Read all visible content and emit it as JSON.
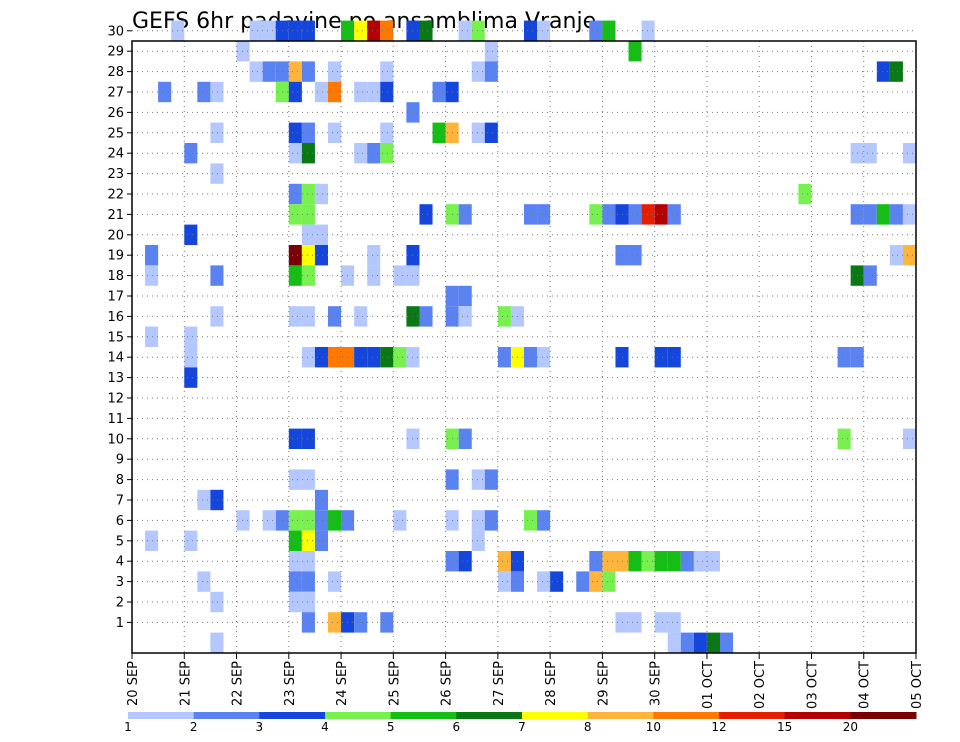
{
  "title": "GEFS 6hr padavine po ansamblima Vranje",
  "chart_data": {
    "type": "heatmap",
    "title": "GEFS 6hr padavine po ansamblima Vranje",
    "xlabel": "",
    "ylabel": "",
    "x_tick_labels": [
      "20 SEP",
      "21 SEP",
      "22 SEP",
      "23 SEP",
      "24 SEP",
      "25 SEP",
      "26 SEP",
      "27 SEP",
      "28 SEP",
      "29 SEP",
      "30 SEP",
      "01 OCT",
      "02 OCT",
      "03 OCT",
      "04 OCT",
      "05 OCT"
    ],
    "y_tick_labels": [
      "1",
      "2",
      "3",
      "4",
      "5",
      "6",
      "7",
      "8",
      "9",
      "10",
      "11",
      "12",
      "13",
      "14",
      "15",
      "16",
      "17",
      "18",
      "19",
      "20",
      "21",
      "22",
      "23",
      "24",
      "25",
      "26",
      "27",
      "28",
      "29",
      "30"
    ],
    "xlim_steps": [
      0,
      60
    ],
    "ylim_members": [
      0,
      30
    ],
    "grid": true,
    "colorbar": {
      "labels": [
        "1",
        "2",
        "3",
        "4",
        "5",
        "6",
        "7",
        "8",
        "10",
        "12",
        "15",
        "20"
      ],
      "colors": [
        "#b4c8ff",
        "#5a82f0",
        "#1446dc",
        "#78f050",
        "#14be14",
        "#0a7814",
        "#ffff00",
        "#ffb43c",
        "#ff7800",
        "#e61e00",
        "#b40000",
        "#780000"
      ]
    },
    "cells": [
      [
        3,
        30,
        1
      ],
      [
        9,
        30,
        1
      ],
      [
        10,
        30,
        1
      ],
      [
        11,
        30,
        3
      ],
      [
        12,
        30,
        3
      ],
      [
        13,
        30,
        3
      ],
      [
        16,
        30,
        5
      ],
      [
        17,
        30,
        7
      ],
      [
        18,
        30,
        15
      ],
      [
        19,
        30,
        10
      ],
      [
        21,
        30,
        3
      ],
      [
        22,
        30,
        6
      ],
      [
        25,
        30,
        1
      ],
      [
        26,
        30,
        4
      ],
      [
        30,
        30,
        3
      ],
      [
        31,
        30,
        1
      ],
      [
        35,
        30,
        2
      ],
      [
        36,
        30,
        5
      ],
      [
        39,
        30,
        1
      ],
      [
        8,
        29,
        1
      ],
      [
        27,
        29,
        1
      ],
      [
        38,
        29,
        5
      ],
      [
        9,
        28,
        1
      ],
      [
        10,
        28,
        2
      ],
      [
        11,
        28,
        2
      ],
      [
        12,
        28,
        8
      ],
      [
        13,
        28,
        2
      ],
      [
        15,
        28,
        1
      ],
      [
        19,
        28,
        1
      ],
      [
        26,
        28,
        1
      ],
      [
        27,
        28,
        2
      ],
      [
        57,
        28,
        3
      ],
      [
        58,
        28,
        6
      ],
      [
        60,
        28,
        3
      ],
      [
        2,
        27,
        2
      ],
      [
        5,
        27,
        2
      ],
      [
        6,
        27,
        1
      ],
      [
        11,
        27,
        4
      ],
      [
        12,
        27,
        3
      ],
      [
        14,
        27,
        1
      ],
      [
        15,
        27,
        10
      ],
      [
        17,
        27,
        1
      ],
      [
        18,
        27,
        1
      ],
      [
        19,
        27,
        3
      ],
      [
        23,
        27,
        2
      ],
      [
        24,
        27,
        3
      ],
      [
        21,
        26,
        2
      ],
      [
        6,
        25,
        1
      ],
      [
        12,
        25,
        3
      ],
      [
        13,
        25,
        2
      ],
      [
        15,
        25,
        1
      ],
      [
        19,
        25,
        1
      ],
      [
        23,
        25,
        5
      ],
      [
        24,
        25,
        8
      ],
      [
        26,
        25,
        1
      ],
      [
        27,
        25,
        3
      ],
      [
        4,
        24,
        2
      ],
      [
        12,
        24,
        1
      ],
      [
        13,
        24,
        6
      ],
      [
        17,
        24,
        1
      ],
      [
        18,
        24,
        2
      ],
      [
        19,
        24,
        4
      ],
      [
        55,
        24,
        1
      ],
      [
        56,
        24,
        1
      ],
      [
        59,
        24,
        1
      ],
      [
        6,
        23,
        1
      ],
      [
        12,
        22,
        2
      ],
      [
        13,
        22,
        4
      ],
      [
        14,
        22,
        1
      ],
      [
        51,
        22,
        4
      ],
      [
        12,
        21,
        4
      ],
      [
        13,
        21,
        4
      ],
      [
        22,
        21,
        3
      ],
      [
        24,
        21,
        4
      ],
      [
        25,
        21,
        2
      ],
      [
        30,
        21,
        2
      ],
      [
        31,
        21,
        2
      ],
      [
        35,
        21,
        4
      ],
      [
        36,
        21,
        2
      ],
      [
        37,
        21,
        3
      ],
      [
        38,
        21,
        2
      ],
      [
        39,
        21,
        12
      ],
      [
        40,
        21,
        15
      ],
      [
        41,
        21,
        2
      ],
      [
        55,
        21,
        2
      ],
      [
        56,
        21,
        2
      ],
      [
        57,
        21,
        5
      ],
      [
        58,
        21,
        2
      ],
      [
        59,
        21,
        1
      ],
      [
        4,
        20,
        3
      ],
      [
        13,
        20,
        1
      ],
      [
        14,
        20,
        1
      ],
      [
        1,
        19,
        2
      ],
      [
        12,
        19,
        20
      ],
      [
        13,
        19,
        7
      ],
      [
        14,
        19,
        3
      ],
      [
        18,
        19,
        1
      ],
      [
        21,
        19,
        3
      ],
      [
        37,
        19,
        2
      ],
      [
        38,
        19,
        2
      ],
      [
        58,
        19,
        1
      ],
      [
        59,
        19,
        8
      ],
      [
        60,
        19,
        7
      ],
      [
        1,
        18,
        1
      ],
      [
        6,
        18,
        2
      ],
      [
        12,
        18,
        5
      ],
      [
        13,
        18,
        4
      ],
      [
        16,
        18,
        1
      ],
      [
        18,
        18,
        1
      ],
      [
        20,
        18,
        1
      ],
      [
        21,
        18,
        1
      ],
      [
        55,
        18,
        6
      ],
      [
        56,
        18,
        2
      ],
      [
        24,
        17,
        2
      ],
      [
        25,
        17,
        2
      ],
      [
        6,
        16,
        1
      ],
      [
        12,
        16,
        1
      ],
      [
        13,
        16,
        1
      ],
      [
        15,
        16,
        2
      ],
      [
        17,
        16,
        1
      ],
      [
        21,
        16,
        6
      ],
      [
        22,
        16,
        2
      ],
      [
        24,
        16,
        2
      ],
      [
        25,
        16,
        1
      ],
      [
        28,
        16,
        4
      ],
      [
        29,
        16,
        1
      ],
      [
        1,
        15,
        1
      ],
      [
        4,
        15,
        1
      ],
      [
        4,
        14,
        1
      ],
      [
        13,
        14,
        1
      ],
      [
        14,
        14,
        3
      ],
      [
        15,
        14,
        10
      ],
      [
        16,
        14,
        10
      ],
      [
        17,
        14,
        3
      ],
      [
        18,
        14,
        3
      ],
      [
        19,
        14,
        6
      ],
      [
        20,
        14,
        4
      ],
      [
        21,
        14,
        1
      ],
      [
        28,
        14,
        2
      ],
      [
        29,
        14,
        7
      ],
      [
        30,
        14,
        2
      ],
      [
        31,
        14,
        1
      ],
      [
        37,
        14,
        3
      ],
      [
        40,
        14,
        3
      ],
      [
        41,
        14,
        3
      ],
      [
        54,
        14,
        2
      ],
      [
        55,
        14,
        2
      ],
      [
        4,
        13,
        3
      ],
      [
        12,
        10,
        3
      ],
      [
        13,
        10,
        3
      ],
      [
        21,
        10,
        1
      ],
      [
        24,
        10,
        4
      ],
      [
        25,
        10,
        2
      ],
      [
        54,
        10,
        4
      ],
      [
        59,
        10,
        1
      ],
      [
        12,
        8,
        1
      ],
      [
        13,
        8,
        1
      ],
      [
        24,
        8,
        2
      ],
      [
        26,
        8,
        1
      ],
      [
        27,
        8,
        2
      ],
      [
        5,
        7,
        1
      ],
      [
        6,
        7,
        3
      ],
      [
        14,
        7,
        2
      ],
      [
        8,
        6,
        1
      ],
      [
        11,
        6,
        2
      ],
      [
        12,
        6,
        4
      ],
      [
        13,
        6,
        4
      ],
      [
        14,
        6,
        2
      ],
      [
        15,
        6,
        5
      ],
      [
        16,
        6,
        2
      ],
      [
        20,
        6,
        1
      ],
      [
        24,
        6,
        1
      ],
      [
        26,
        6,
        1
      ],
      [
        27,
        6,
        2
      ],
      [
        30,
        6,
        4
      ],
      [
        31,
        6,
        2
      ],
      [
        10,
        6,
        1
      ],
      [
        1,
        5,
        1
      ],
      [
        4,
        5,
        1
      ],
      [
        12,
        5,
        5
      ],
      [
        13,
        5,
        7
      ],
      [
        14,
        5,
        2
      ],
      [
        26,
        5,
        1
      ],
      [
        12,
        4,
        1
      ],
      [
        13,
        4,
        1
      ],
      [
        24,
        4,
        2
      ],
      [
        25,
        4,
        3
      ],
      [
        28,
        4,
        8
      ],
      [
        29,
        4,
        3
      ],
      [
        35,
        4,
        2
      ],
      [
        36,
        4,
        8
      ],
      [
        37,
        4,
        8
      ],
      [
        38,
        4,
        5
      ],
      [
        39,
        4,
        4
      ],
      [
        40,
        4,
        5
      ],
      [
        41,
        4,
        5
      ],
      [
        42,
        4,
        2
      ],
      [
        43,
        4,
        1
      ],
      [
        44,
        4,
        1
      ],
      [
        5,
        3,
        1
      ],
      [
        12,
        3,
        2
      ],
      [
        13,
        3,
        2
      ],
      [
        15,
        3,
        1
      ],
      [
        28,
        3,
        1
      ],
      [
        29,
        3,
        2
      ],
      [
        31,
        3,
        1
      ],
      [
        32,
        3,
        3
      ],
      [
        34,
        3,
        2
      ],
      [
        35,
        3,
        8
      ],
      [
        36,
        3,
        4
      ],
      [
        6,
        2,
        1
      ],
      [
        12,
        2,
        1
      ],
      [
        13,
        2,
        1
      ],
      [
        13,
        1,
        2
      ],
      [
        15,
        1,
        8
      ],
      [
        16,
        1,
        3
      ],
      [
        17,
        1,
        2
      ],
      [
        19,
        1,
        2
      ],
      [
        37,
        1,
        1
      ],
      [
        38,
        1,
        1
      ],
      [
        40,
        1,
        1
      ],
      [
        41,
        1,
        1
      ],
      [
        6,
        0,
        1
      ],
      [
        41,
        0,
        1
      ],
      [
        42,
        0,
        2
      ],
      [
        43,
        0,
        3
      ],
      [
        44,
        0,
        6
      ],
      [
        45,
        0,
        2
      ]
    ]
  }
}
